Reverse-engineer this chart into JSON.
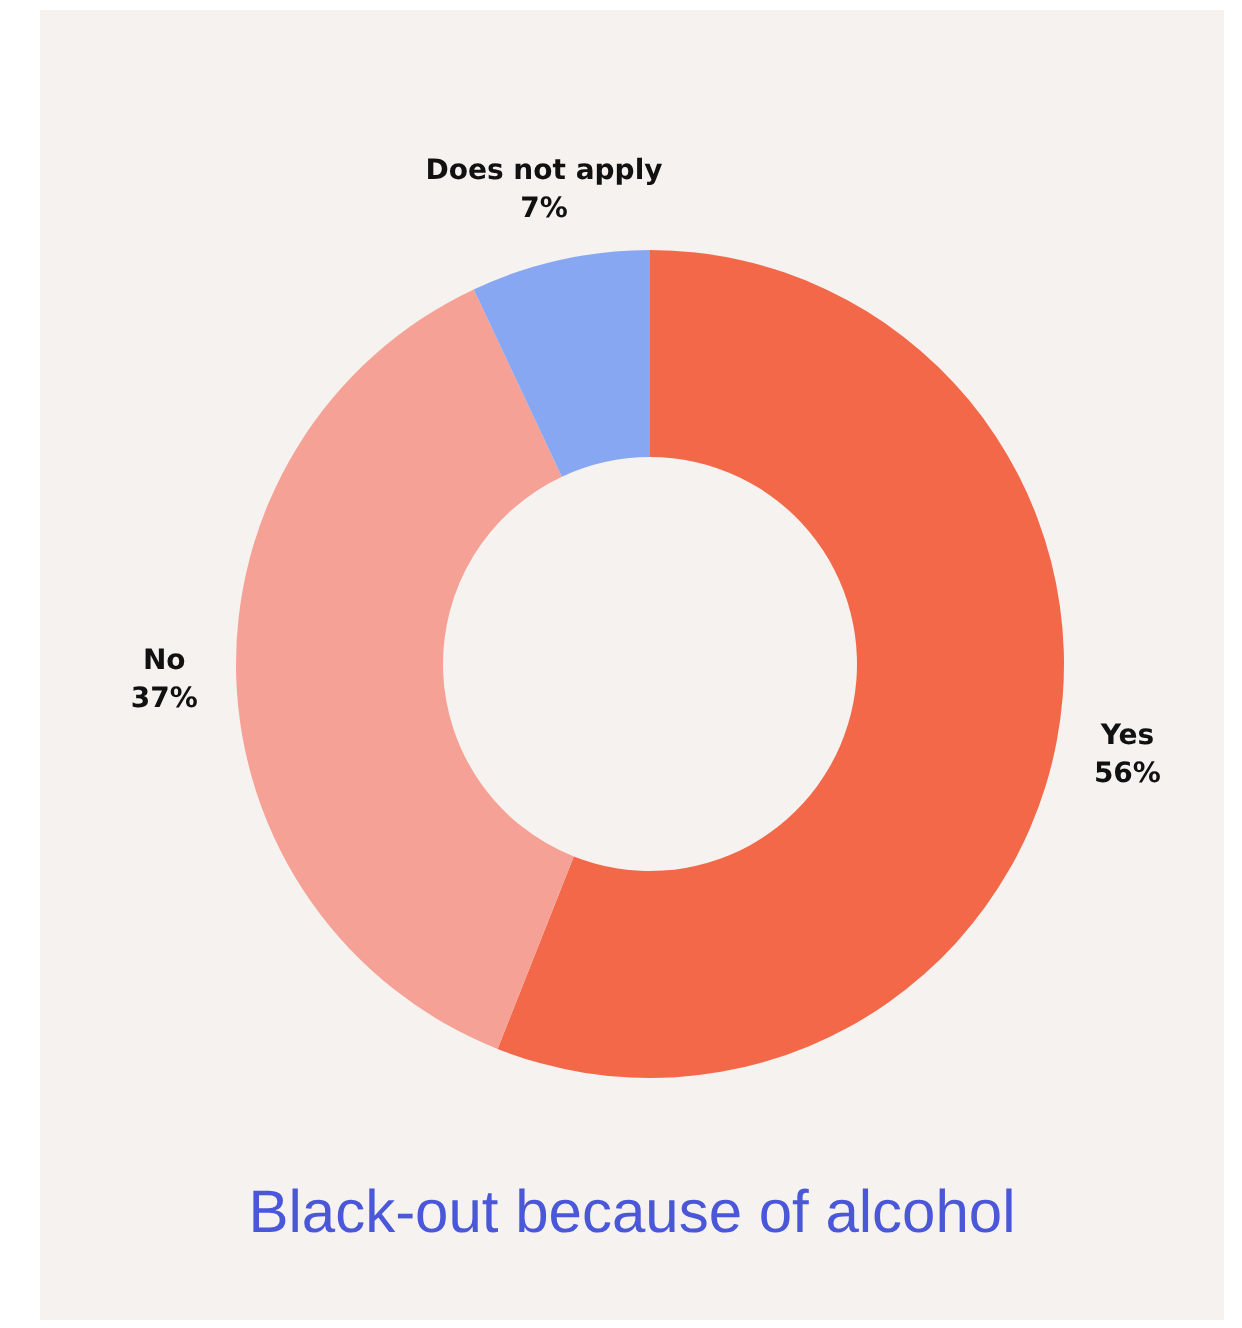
{
  "chart_data": {
    "type": "donut",
    "title": "Black-out because of alcohol",
    "categories": [
      "Yes",
      "No",
      "Does not apply"
    ],
    "values": [
      56,
      37,
      7
    ],
    "colors": [
      "#f26849",
      "#f6a196",
      "#87a7f2"
    ],
    "value_labels": [
      "56%",
      "37%",
      "7%"
    ],
    "legend": false
  }
}
